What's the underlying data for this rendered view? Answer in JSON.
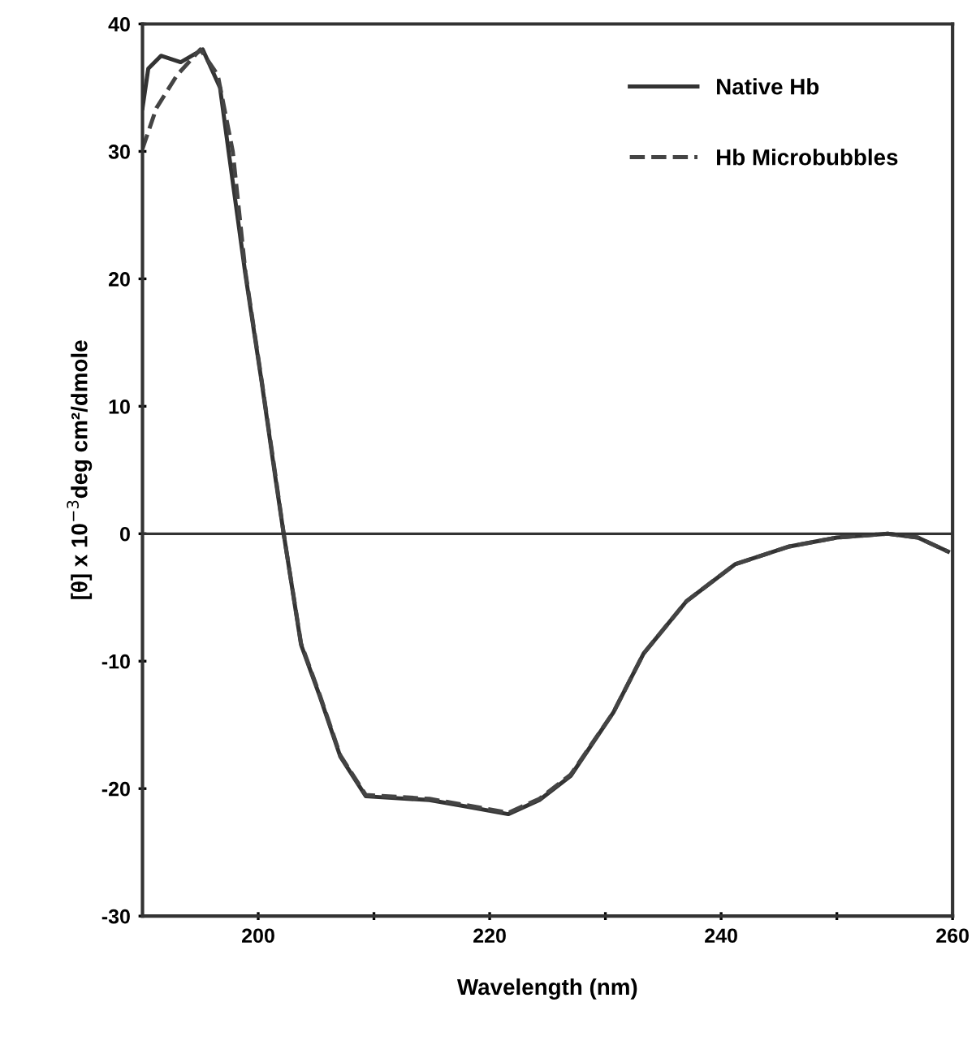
{
  "chart_data": {
    "type": "line",
    "xlabel": "Wavelength (nm)",
    "ylabel": "[θ] x 10$^{−3}$deg cm²/dmole",
    "xlim": [
      190,
      260
    ],
    "ylim": [
      -30,
      40
    ],
    "xticks": [
      {
        "value": 200,
        "label": "200"
      },
      {
        "value": 210,
        "label": null
      },
      {
        "value": 220,
        "label": "220"
      },
      {
        "value": 230,
        "label": null
      },
      {
        "value": 240,
        "label": "240"
      },
      {
        "value": 250,
        "label": null
      },
      {
        "value": 260,
        "label": "260"
      }
    ],
    "yticks": [
      -30,
      -20,
      -10,
      0,
      10,
      20,
      30,
      40
    ],
    "grid": false,
    "legend": "top right",
    "marker": "none",
    "ref_lines": [
      {
        "axis": "y",
        "value": 0,
        "label": null,
        "color": "#333333"
      }
    ],
    "series": [
      {
        "name": "Native Hb",
        "color": "#333333",
        "line_style": "solid",
        "x": [
          190,
          190.5,
          191.6,
          193.3,
          195.2,
          196.7,
          197.5,
          198.9,
          200.3,
          201.5,
          202.2,
          203.7,
          205.3,
          207.1,
          209.3,
          214.8,
          218,
          221.6,
          224.3,
          227,
          230.7,
          233.3,
          237,
          241.2,
          245.9,
          250,
          254.4,
          257,
          259.6
        ],
        "values": [
          33.4,
          36.5,
          37.5,
          37,
          38,
          35,
          29.6,
          20.3,
          11.9,
          4.3,
          0,
          -8.7,
          -12.7,
          -17.5,
          -20.6,
          -20.9,
          -21.4,
          -22,
          -20.9,
          -19,
          -14,
          -9.4,
          -5.3,
          -2.4,
          -1,
          -0.3,
          0,
          -0.3,
          -1.4
        ]
      },
      {
        "name": "Hb Microbubbles",
        "color": "#444444",
        "line_style": "dashed",
        "x": [
          190,
          191.2,
          193,
          195,
          196.5,
          197.8,
          198.9,
          200.3,
          201.5,
          202.2,
          203.7,
          205.3,
          207.1,
          209.3,
          214.8,
          218,
          221.6,
          224.3,
          227,
          230.7,
          233.3,
          237,
          241.2,
          245.9,
          250,
          254.4,
          257,
          259.6
        ],
        "values": [
          30.2,
          33.4,
          36,
          38,
          36,
          30,
          20.5,
          12,
          4.5,
          0,
          -8.6,
          -12.6,
          -17.4,
          -20.5,
          -20.8,
          -21.3,
          -21.9,
          -20.8,
          -18.9,
          -14,
          -9.4,
          -5.3,
          -2.4,
          -1,
          -0.3,
          0,
          -0.3,
          -1.4
        ]
      }
    ]
  }
}
